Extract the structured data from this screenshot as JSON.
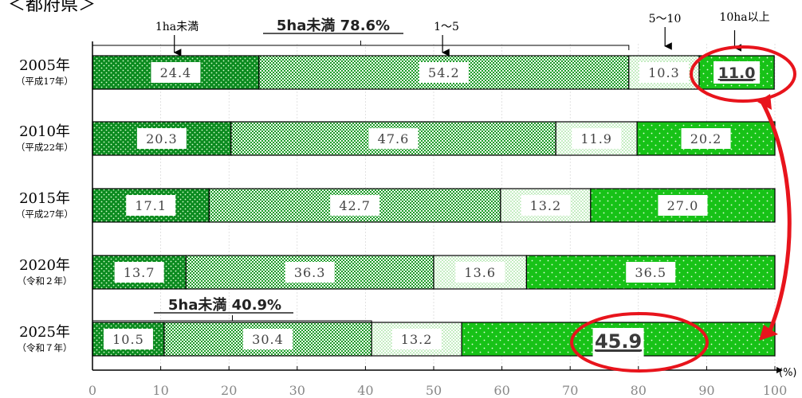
{
  "header": {
    "title": "＜都府県＞"
  },
  "chart_data": {
    "type": "bar",
    "orientation": "horizontal",
    "stacked": true,
    "categories": [
      {
        "year": "2005年",
        "era": "（平成17年）"
      },
      {
        "year": "2010年",
        "era": "（平成22年）"
      },
      {
        "year": "2015年",
        "era": "（平成27年）"
      },
      {
        "year": "2020年",
        "era": "（令和２年）"
      },
      {
        "year": "2025年",
        "era": "（令和７年）"
      }
    ],
    "series": [
      {
        "name": "1ha未満",
        "values": [
          24.4,
          20.3,
          17.1,
          13.7,
          10.5
        ],
        "color": "#0b8a1f",
        "pattern": "dots-dark"
      },
      {
        "name": "1～5",
        "values": [
          54.2,
          47.6,
          42.7,
          36.3,
          30.4
        ],
        "color": "#27a033",
        "pattern": "checker"
      },
      {
        "name": "5～10",
        "values": [
          10.3,
          11.9,
          13.2,
          13.6,
          13.2
        ],
        "color": "#c8f0c0",
        "pattern": "dots-light"
      },
      {
        "name": "10ha以上",
        "values": [
          11.0,
          20.2,
          27.0,
          36.5,
          45.9
        ],
        "color": "#19c219",
        "pattern": "dots-bright"
      }
    ],
    "x_axis": {
      "ticks": [
        "0",
        "10",
        "20",
        "30",
        "40",
        "50",
        "60",
        "70",
        "80",
        "90",
        "100"
      ],
      "unit": "(%)",
      "range": [
        0,
        100
      ]
    },
    "annotations": {
      "under5_2005": "5ha未満  78.6%",
      "under5_2025": "5ha未満  40.9%",
      "label_1ha": "1ha未満",
      "label_1to5": "1～5",
      "label_5to10": "5～10",
      "label_10plus": "10ha以上"
    },
    "highlight_color": "#e8141c"
  }
}
